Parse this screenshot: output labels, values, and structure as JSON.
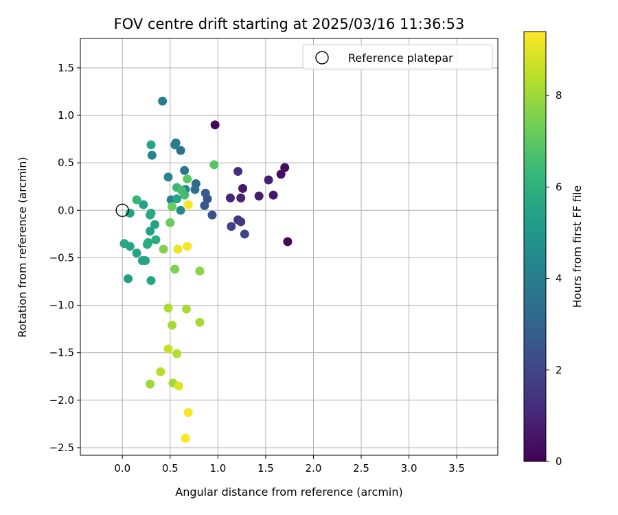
{
  "chart_data": {
    "type": "scatter",
    "title": "FOV centre drift starting at 2025/03/16 11:36:53",
    "xlabel": "Angular distance from reference (arcmin)",
    "ylabel": "Rotation from reference (arcmin)",
    "xlim": [
      -0.44,
      3.93
    ],
    "ylim": [
      -2.58,
      1.81
    ],
    "xticks": [
      "0.0",
      "0.5",
      "1.0",
      "1.5",
      "2.0",
      "2.5",
      "3.0",
      "3.5"
    ],
    "yticks": [
      "1.5",
      "1.0",
      "0.5",
      "0.0",
      "−0.5",
      "−1.0",
      "−1.5",
      "−2.0",
      "−2.5"
    ],
    "grid": true,
    "legend": {
      "placement": "top-right",
      "entries": [
        "Reference platepar"
      ]
    },
    "reference_point": {
      "x": 0.0,
      "y": 0.0
    },
    "colorbar": {
      "label": "Hours from first FF file",
      "range": [
        0,
        9.4
      ],
      "ticks": [
        "0",
        "2",
        "4",
        "6",
        "8"
      ],
      "colormap": [
        "#440154",
        "#482878",
        "#3e4989",
        "#31688e",
        "#26828e",
        "#1f9e89",
        "#35b779",
        "#6ece58",
        "#b5de2b",
        "#fde725"
      ]
    },
    "points": [
      {
        "x": 0.97,
        "y": 0.9,
        "t": 0.1
      },
      {
        "x": 1.7,
        "y": 0.45,
        "t": 0.3
      },
      {
        "x": 1.66,
        "y": 0.38,
        "t": 0.4
      },
      {
        "x": 1.73,
        "y": -0.33,
        "t": 0.2
      },
      {
        "x": 1.53,
        "y": 0.32,
        "t": 0.8
      },
      {
        "x": 1.58,
        "y": 0.16,
        "t": 0.6
      },
      {
        "x": 1.43,
        "y": 0.15,
        "t": 0.7
      },
      {
        "x": 1.26,
        "y": 0.23,
        "t": 0.6
      },
      {
        "x": 1.21,
        "y": 0.41,
        "t": 1.2
      },
      {
        "x": 1.24,
        "y": 0.13,
        "t": 0.9
      },
      {
        "x": 1.13,
        "y": 0.13,
        "t": 1.0
      },
      {
        "x": 1.21,
        "y": -0.1,
        "t": 1.4
      },
      {
        "x": 1.24,
        "y": -0.12,
        "t": 1.6
      },
      {
        "x": 1.14,
        "y": -0.17,
        "t": 1.8
      },
      {
        "x": 1.28,
        "y": -0.25,
        "t": 2.0
      },
      {
        "x": 0.94,
        "y": -0.05,
        "t": 2.4
      },
      {
        "x": 0.89,
        "y": 0.12,
        "t": 2.5
      },
      {
        "x": 0.87,
        "y": 0.18,
        "t": 2.8
      },
      {
        "x": 0.86,
        "y": 0.05,
        "t": 2.6
      },
      {
        "x": 0.77,
        "y": 0.28,
        "t": 3.2
      },
      {
        "x": 0.76,
        "y": 0.22,
        "t": 3.4
      },
      {
        "x": 0.65,
        "y": 0.42,
        "t": 3.6
      },
      {
        "x": 0.61,
        "y": 0.63,
        "t": 3.6
      },
      {
        "x": 0.56,
        "y": 0.71,
        "t": 3.8
      },
      {
        "x": 0.55,
        "y": 0.69,
        "t": 4.0
      },
      {
        "x": 0.42,
        "y": 1.15,
        "t": 4.0
      },
      {
        "x": 0.31,
        "y": 0.58,
        "t": 4.2
      },
      {
        "x": 0.48,
        "y": 0.35,
        "t": 4.2
      },
      {
        "x": 0.51,
        "y": 0.11,
        "t": 4.0
      },
      {
        "x": 0.66,
        "y": 0.22,
        "t": 4.3
      },
      {
        "x": 0.61,
        "y": 0.0,
        "t": 4.5
      },
      {
        "x": 0.57,
        "y": 0.12,
        "t": 5.5
      },
      {
        "x": 0.3,
        "y": 0.69,
        "t": 5.6
      },
      {
        "x": 0.22,
        "y": 0.06,
        "t": 5.4
      },
      {
        "x": 0.08,
        "y": -0.03,
        "t": 5.4
      },
      {
        "x": 0.3,
        "y": -0.03,
        "t": 5.6
      },
      {
        "x": 0.29,
        "y": -0.05,
        "t": 5.7
      },
      {
        "x": 0.34,
        "y": -0.15,
        "t": 5.5
      },
      {
        "x": 0.29,
        "y": -0.22,
        "t": 5.4
      },
      {
        "x": 0.35,
        "y": -0.31,
        "t": 5.8
      },
      {
        "x": 0.27,
        "y": -0.34,
        "t": 5.6
      },
      {
        "x": 0.26,
        "y": -0.36,
        "t": 5.8
      },
      {
        "x": 0.02,
        "y": -0.35,
        "t": 5.6
      },
      {
        "x": 0.08,
        "y": -0.38,
        "t": 5.5
      },
      {
        "x": 0.15,
        "y": -0.45,
        "t": 5.5
      },
      {
        "x": 0.21,
        "y": -0.53,
        "t": 5.4
      },
      {
        "x": 0.24,
        "y": -0.53,
        "t": 5.5
      },
      {
        "x": 0.06,
        "y": -0.72,
        "t": 5.3
      },
      {
        "x": 0.3,
        "y": -0.74,
        "t": 5.5
      },
      {
        "x": 0.15,
        "y": 0.11,
        "t": 6.2
      },
      {
        "x": 0.57,
        "y": 0.24,
        "t": 6.3
      },
      {
        "x": 0.62,
        "y": 0.21,
        "t": 6.6
      },
      {
        "x": 0.65,
        "y": 0.16,
        "t": 6.5
      },
      {
        "x": 0.68,
        "y": 0.33,
        "t": 7.0
      },
      {
        "x": 0.96,
        "y": 0.48,
        "t": 6.9
      },
      {
        "x": 0.52,
        "y": 0.04,
        "t": 7.2
      },
      {
        "x": 0.5,
        "y": -0.13,
        "t": 7.2
      },
      {
        "x": 0.43,
        "y": -0.41,
        "t": 7.6
      },
      {
        "x": 0.55,
        "y": -0.62,
        "t": 7.5
      },
      {
        "x": 0.81,
        "y": -0.64,
        "t": 7.7
      },
      {
        "x": 0.48,
        "y": -1.03,
        "t": 8.2
      },
      {
        "x": 0.67,
        "y": -1.04,
        "t": 8.2
      },
      {
        "x": 0.52,
        "y": -1.21,
        "t": 8.1
      },
      {
        "x": 0.81,
        "y": -1.18,
        "t": 8.1
      },
      {
        "x": 0.48,
        "y": -1.46,
        "t": 8.6
      },
      {
        "x": 0.57,
        "y": -1.51,
        "t": 8.3
      },
      {
        "x": 0.4,
        "y": -1.7,
        "t": 8.4
      },
      {
        "x": 0.29,
        "y": -1.83,
        "t": 8.0
      },
      {
        "x": 0.53,
        "y": -1.82,
        "t": 8.1
      },
      {
        "x": 0.59,
        "y": -1.85,
        "t": 8.9
      },
      {
        "x": 0.69,
        "y": 0.06,
        "t": 9.3
      },
      {
        "x": 0.58,
        "y": -0.41,
        "t": 9.2
      },
      {
        "x": 0.68,
        "y": -0.38,
        "t": 9.3
      },
      {
        "x": 0.69,
        "y": -2.13,
        "t": 9.3
      },
      {
        "x": 0.66,
        "y": -2.4,
        "t": 9.4
      }
    ]
  }
}
